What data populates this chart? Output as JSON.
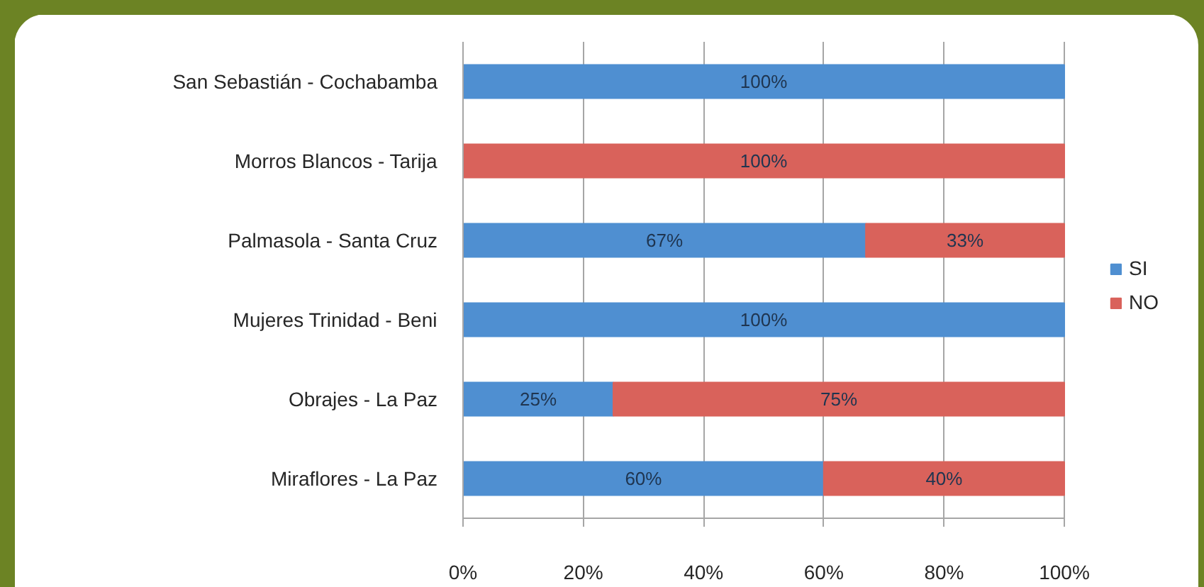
{
  "chart_data": {
    "type": "bar",
    "orientation": "horizontal",
    "stacked": true,
    "categories": [
      "San Sebastián - Cochabamba",
      "Morros Blancos - Tarija",
      "Palmasola - Santa Cruz",
      "Mujeres Trinidad - Beni",
      "Obrajes - La Paz",
      "Miraflores - La Paz"
    ],
    "series": [
      {
        "name": "SI",
        "color": "#4f8fd1",
        "values": [
          100,
          0,
          67,
          100,
          25,
          60
        ],
        "value_labels": [
          "100%",
          null,
          "67%",
          "100%",
          "25%",
          "60%"
        ]
      },
      {
        "name": "NO",
        "color": "#d9625b",
        "values": [
          0,
          100,
          33,
          0,
          75,
          40
        ],
        "value_labels": [
          null,
          "100%",
          "33%",
          null,
          "75%",
          "40%"
        ]
      }
    ],
    "xlim": [
      0,
      100
    ],
    "xticks": [
      {
        "value": 0,
        "label": "0%"
      },
      {
        "value": 20,
        "label": "20%"
      },
      {
        "value": 40,
        "label": "40%"
      },
      {
        "value": 60,
        "label": "60%"
      },
      {
        "value": 80,
        "label": "80%"
      },
      {
        "value": 100,
        "label": "100%"
      }
    ],
    "grid": "x",
    "legend": "right"
  }
}
